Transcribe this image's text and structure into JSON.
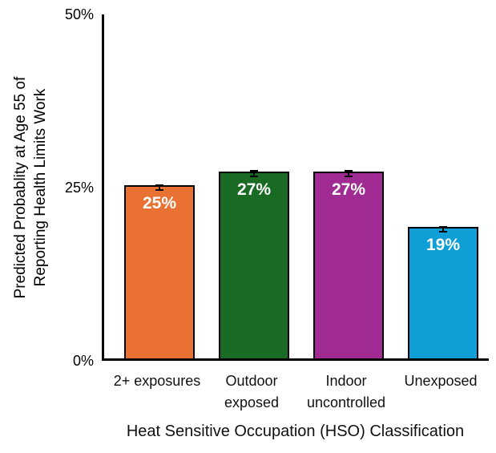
{
  "chart_data": {
    "type": "bar",
    "title": "",
    "xlabel": "Heat Sensitive Occupation (HSO) Classification",
    "ylabel": "Predicted Probablity at Age 55 of Reporting Health Limits Work",
    "ylabel_lines": [
      "Predicted Probablity at Age 55 of",
      "Reporting Health Limits Work"
    ],
    "categories": [
      "2+ exposures",
      "Outdoor exposed",
      "Indoor uncontrolled",
      "Unexposed"
    ],
    "values": [
      25,
      27,
      27,
      19
    ],
    "bar_labels": [
      "25%",
      "27%",
      "27%",
      "19%"
    ],
    "error_margin": 0.5,
    "colors": [
      "#E97132",
      "#196B24",
      "#A02B93",
      "#0F9ED5"
    ],
    "bar_border_color": "#000000",
    "axis_color": "#000000",
    "label_text_color": "#FFFFFF",
    "ylim": [
      0,
      50
    ],
    "yticks": [
      {
        "value": 0,
        "label": "0%"
      },
      {
        "value": 25,
        "label": "25%"
      },
      {
        "value": 50,
        "label": "50%"
      }
    ],
    "grid": false,
    "legend": "none"
  }
}
